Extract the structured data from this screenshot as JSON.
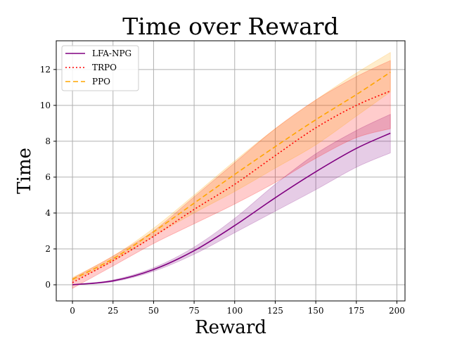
{
  "chart_data": {
    "type": "line",
    "title": "Time over Reward",
    "xlabel": "Reward",
    "ylabel": "Time",
    "xlim": [
      -10,
      205
    ],
    "ylim": [
      -0.9,
      13.6
    ],
    "xticks": [
      0,
      25,
      50,
      75,
      100,
      125,
      150,
      175,
      200
    ],
    "yticks": [
      0,
      2,
      4,
      6,
      8,
      10,
      12
    ],
    "grid": true,
    "legend_position": "top-left",
    "x": [
      0,
      25,
      50,
      75,
      100,
      125,
      150,
      175,
      196
    ],
    "series": [
      {
        "name": "LFA-NPG",
        "color": "#800080",
        "line_style": "solid",
        "values": [
          0.0,
          0.22,
          0.85,
          1.9,
          3.3,
          4.85,
          6.3,
          7.6,
          8.45
        ],
        "lower": [
          0.0,
          0.17,
          0.75,
          1.7,
          2.9,
          4.1,
          5.3,
          6.55,
          7.35
        ],
        "upper": [
          0.0,
          0.27,
          0.95,
          2.1,
          3.7,
          5.6,
          7.3,
          8.6,
          9.5
        ]
      },
      {
        "name": "TRPO",
        "color": "#ff0000",
        "line_style": "dotted",
        "values": [
          0.12,
          1.35,
          2.7,
          4.2,
          5.6,
          7.2,
          8.75,
          10.0,
          10.8
        ],
        "lower": [
          -0.2,
          1.05,
          2.3,
          3.4,
          4.5,
          5.7,
          7.05,
          8.2,
          8.7
        ],
        "upper": [
          0.35,
          1.6,
          3.0,
          4.9,
          6.8,
          8.7,
          10.3,
          11.6,
          12.5
        ]
      },
      {
        "name": "PPO",
        "color": "#ffa500",
        "line_style": "dashed",
        "values": [
          0.3,
          1.45,
          2.95,
          4.55,
          6.15,
          7.7,
          9.2,
          10.6,
          11.85
        ],
        "lower": [
          0.2,
          1.3,
          2.7,
          4.0,
          5.2,
          6.5,
          7.8,
          9.4,
          10.75
        ],
        "upper": [
          0.4,
          1.6,
          3.15,
          5.0,
          6.9,
          8.7,
          10.3,
          11.8,
          12.95
        ]
      }
    ]
  }
}
